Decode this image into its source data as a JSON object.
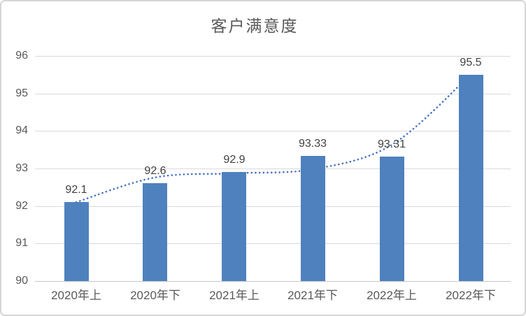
{
  "chart_data": {
    "type": "bar",
    "title": "客户满意度",
    "categories": [
      "2020年上",
      "2020年下",
      "2021年上",
      "2021年下",
      "2022年上",
      "2022年下"
    ],
    "series": [
      {
        "name": "客户满意度",
        "type": "bar",
        "values": [
          92.1,
          92.6,
          92.9,
          93.33,
          93.31,
          95.5
        ],
        "color": "#4e81bd"
      },
      {
        "name": "趋势线",
        "type": "dotted-trendline",
        "values": [
          92.1,
          92.76,
          92.87,
          92.98,
          93.63,
          95.5
        ],
        "color": "#4472c4"
      }
    ],
    "data_labels": [
      "92.1",
      "92.6",
      "92.9",
      "93.33",
      "93.31",
      "95.5"
    ],
    "y_axis": {
      "min": 90,
      "max": 96,
      "step": 1,
      "tick_labels": [
        "90",
        "91",
        "92",
        "93",
        "94",
        "95",
        "96"
      ]
    },
    "xlabel": "",
    "ylabel": "",
    "grid": true,
    "legend_position": "none",
    "colors": {
      "bar": "#4e81bd",
      "trendline": "#4472c4",
      "gridline": "#d9d9d9",
      "axis_line": "#c6c6c6",
      "tick_text": "#595959",
      "data_label_text": "#404040",
      "title_text": "#595959",
      "frame_border": "#d5d5d5",
      "background": "#ffffff"
    }
  }
}
